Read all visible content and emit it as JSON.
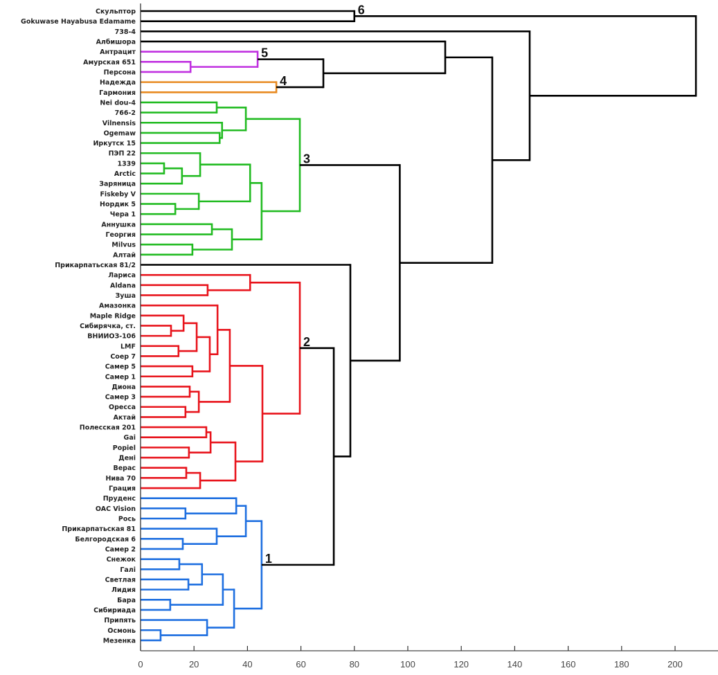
{
  "chart_data": {
    "type": "dendrogram",
    "orientation": "horizontal",
    "xlim": [
      0,
      216
    ],
    "x_ticks": [
      0,
      20,
      40,
      60,
      80,
      100,
      120,
      140,
      160,
      180,
      200
    ],
    "xlabel": "",
    "ylabel": "",
    "title": "",
    "colors": {
      "default": "#000000",
      "cluster_1": "#1e6fe0",
      "cluster_2": "#e8141c",
      "cluster_3": "#22bb22",
      "cluster_4": "#e88a20",
      "cluster_5": "#c030e0",
      "cluster_6": "#000000"
    },
    "tree": {
      "height": 207.8,
      "children": [
        {
          "height": 80,
          "cluster_label": "6",
          "color": "#000000",
          "children": [
            "Скульптор",
            "Gokuwase Hayabusa Edamame"
          ]
        },
        {
          "height": 145.6,
          "children": [
            "738-4",
            {
              "height": 131.6,
              "children": [
                {
                  "height": 114,
                  "children": [
                    "Албишора",
                    {
                      "height": 68.4,
                      "children": [
                        {
                          "height": 43.8,
                          "cluster_label": "5",
                          "color": "#c030e0",
                          "children": [
                            "Антрацит",
                            {
                              "height": 18.7,
                              "children": [
                                "Амурская 651",
                                "Персона"
                              ]
                            }
                          ]
                        },
                        {
                          "height": 50.8,
                          "cluster_label": "4",
                          "color": "#e88a20",
                          "children": [
                            "Надежда",
                            "Гармония"
                          ]
                        }
                      ]
                    }
                  ]
                },
                {
                  "height": 97,
                  "children": [
                    {
                      "height": 59.6,
                      "cluster_label": "3",
                      "color": "#22bb22",
                      "children": [
                        {
                          "height": 39.4,
                          "children": [
                            {
                              "height": 28.5,
                              "children": [
                                "Nei dou-4",
                                "766-2"
                              ]
                            },
                            {
                              "height": 30.5,
                              "children": [
                                "Vilnensis",
                                {
                                  "height": 29.6,
                                  "children": [
                                    "Ogemaw",
                                    "Иркутск 15"
                                  ]
                                }
                              ]
                            }
                          ]
                        },
                        {
                          "height": 45.3,
                          "children": [
                            {
                              "height": 41,
                              "children": [
                                {
                                  "height": 22.3,
                                  "children": [
                                    "ПЭП 22",
                                    {
                                      "height": 15.5,
                                      "children": [
                                        {
                                          "height": 8.8,
                                          "children": [
                                            "1339",
                                            "Arctic"
                                          ]
                                        },
                                        "Заряница"
                                      ]
                                    }
                                  ]
                                },
                                {
                                  "height": 21.8,
                                  "children": [
                                    "Fiskeby V",
                                    {
                                      "height": 13,
                                      "children": [
                                        "Нордик 5",
                                        "Чера 1"
                                      ]
                                    }
                                  ]
                                }
                              ]
                            },
                            {
                              "height": 34.2,
                              "children": [
                                {
                                  "height": 26.7,
                                  "children": [
                                    "Аннушка",
                                    "Георгия"
                                  ]
                                },
                                {
                                  "height": 19.4,
                                  "children": [
                                    "Milvus",
                                    "Алтай"
                                  ]
                                }
                              ]
                            }
                          ]
                        }
                      ]
                    },
                    {
                      "height": 78.5,
                      "children": [
                        "Прикарпатьская 81/2",
                        {
                          "height": 72.3,
                          "children": [
                            {
                              "height": 59.6,
                              "cluster_label": "2",
                              "color": "#e8141c",
                              "children": [
                                {
                                  "height": 41,
                                  "children": [
                                    "Лариса",
                                    {
                                      "height": 25.1,
                                      "children": [
                                        "Aldana",
                                        "Зуша"
                                      ]
                                    }
                                  ]
                                },
                                {
                                  "height": 45.6,
                                  "children": [
                                    {
                                      "height": 33.4,
                                      "children": [
                                        {
                                          "height": 28.8,
                                          "children": [
                                            "Амазонка",
                                            {
                                              "height": 25.9,
                                              "children": [
                                                {
                                                  "height": 21,
                                                  "children": [
                                                    {
                                                      "height": 16.1,
                                                      "children": [
                                                        "Maple Ridge",
                                                        {
                                                          "height": 11.4,
                                                          "children": [
                                                            "Сибирячка, ст.",
                                                            "ВНИИОЗ-106"
                                                          ]
                                                        }
                                                      ]
                                                    },
                                                    {
                                                      "height": 14.2,
                                                      "children": [
                                                        "LMF",
                                                        "Соер 7"
                                                      ]
                                                    }
                                                  ]
                                                },
                                                {
                                                  "height": 19.4,
                                                  "children": [
                                                    "Самер 5",
                                                    "Самер 1"
                                                  ]
                                                }
                                              ]
                                            }
                                          ]
                                        },
                                        {
                                          "height": 21.8,
                                          "children": [
                                            {
                                              "height": 18.4,
                                              "children": [
                                                "Диона",
                                                "Самер 3"
                                              ]
                                            },
                                            {
                                              "height": 16.8,
                                              "children": [
                                                "Оресса",
                                                "Актай"
                                              ]
                                            }
                                          ]
                                        }
                                      ]
                                    },
                                    {
                                      "height": 35.5,
                                      "children": [
                                        {
                                          "height": 26.2,
                                          "children": [
                                            {
                                              "height": 24.6,
                                              "children": [
                                                "Полесская 201",
                                                "Gai"
                                              ]
                                            },
                                            {
                                              "height": 18.1,
                                              "children": [
                                                "Popiel",
                                                "Дені"
                                              ]
                                            }
                                          ]
                                        },
                                        {
                                          "height": 22.3,
                                          "children": [
                                            {
                                              "height": 17.1,
                                              "children": [
                                                "Верас",
                                                "Нива 70"
                                              ]
                                            },
                                            "Грация"
                                          ]
                                        }
                                      ]
                                    }
                                  ]
                                }
                              ]
                            },
                            {
                              "height": 45.3,
                              "cluster_label": "1",
                              "color": "#1e6fe0",
                              "children": [
                                {
                                  "height": 39.4,
                                  "children": [
                                    {
                                      "height": 35.8,
                                      "children": [
                                        "Пруденс",
                                        {
                                          "height": 16.8,
                                          "children": [
                                            "OAC Vision",
                                            "Рось"
                                          ]
                                        }
                                      ]
                                    },
                                    {
                                      "height": 28.5,
                                      "children": [
                                        "Прикарпатьская 81",
                                        {
                                          "height": 15.8,
                                          "children": [
                                            "Белгородская 6",
                                            "Самер 2"
                                          ]
                                        }
                                      ]
                                    }
                                  ]
                                },
                                {
                                  "height": 35,
                                  "children": [
                                    {
                                      "height": 30.8,
                                      "children": [
                                        {
                                          "height": 23,
                                          "children": [
                                            {
                                              "height": 14.5,
                                              "children": [
                                                "Снежок",
                                                "Галі"
                                              ]
                                            },
                                            {
                                              "height": 17.9,
                                              "children": [
                                                "Светлая",
                                                "Лидия"
                                              ]
                                            }
                                          ]
                                        },
                                        {
                                          "height": 11.1,
                                          "children": [
                                            "Бара",
                                            "Сибириада"
                                          ]
                                        }
                                      ]
                                    },
                                    {
                                      "height": 24.9,
                                      "children": [
                                        "Припять",
                                        {
                                          "height": 7.5,
                                          "children": [
                                            "Осмонь",
                                            "Мезенка"
                                          ]
                                        }
                                      ]
                                    }
                                  ]
                                }
                              ]
                            }
                          ]
                        }
                      ]
                    }
                  ]
                }
              ]
            }
          ]
        }
      ]
    }
  }
}
